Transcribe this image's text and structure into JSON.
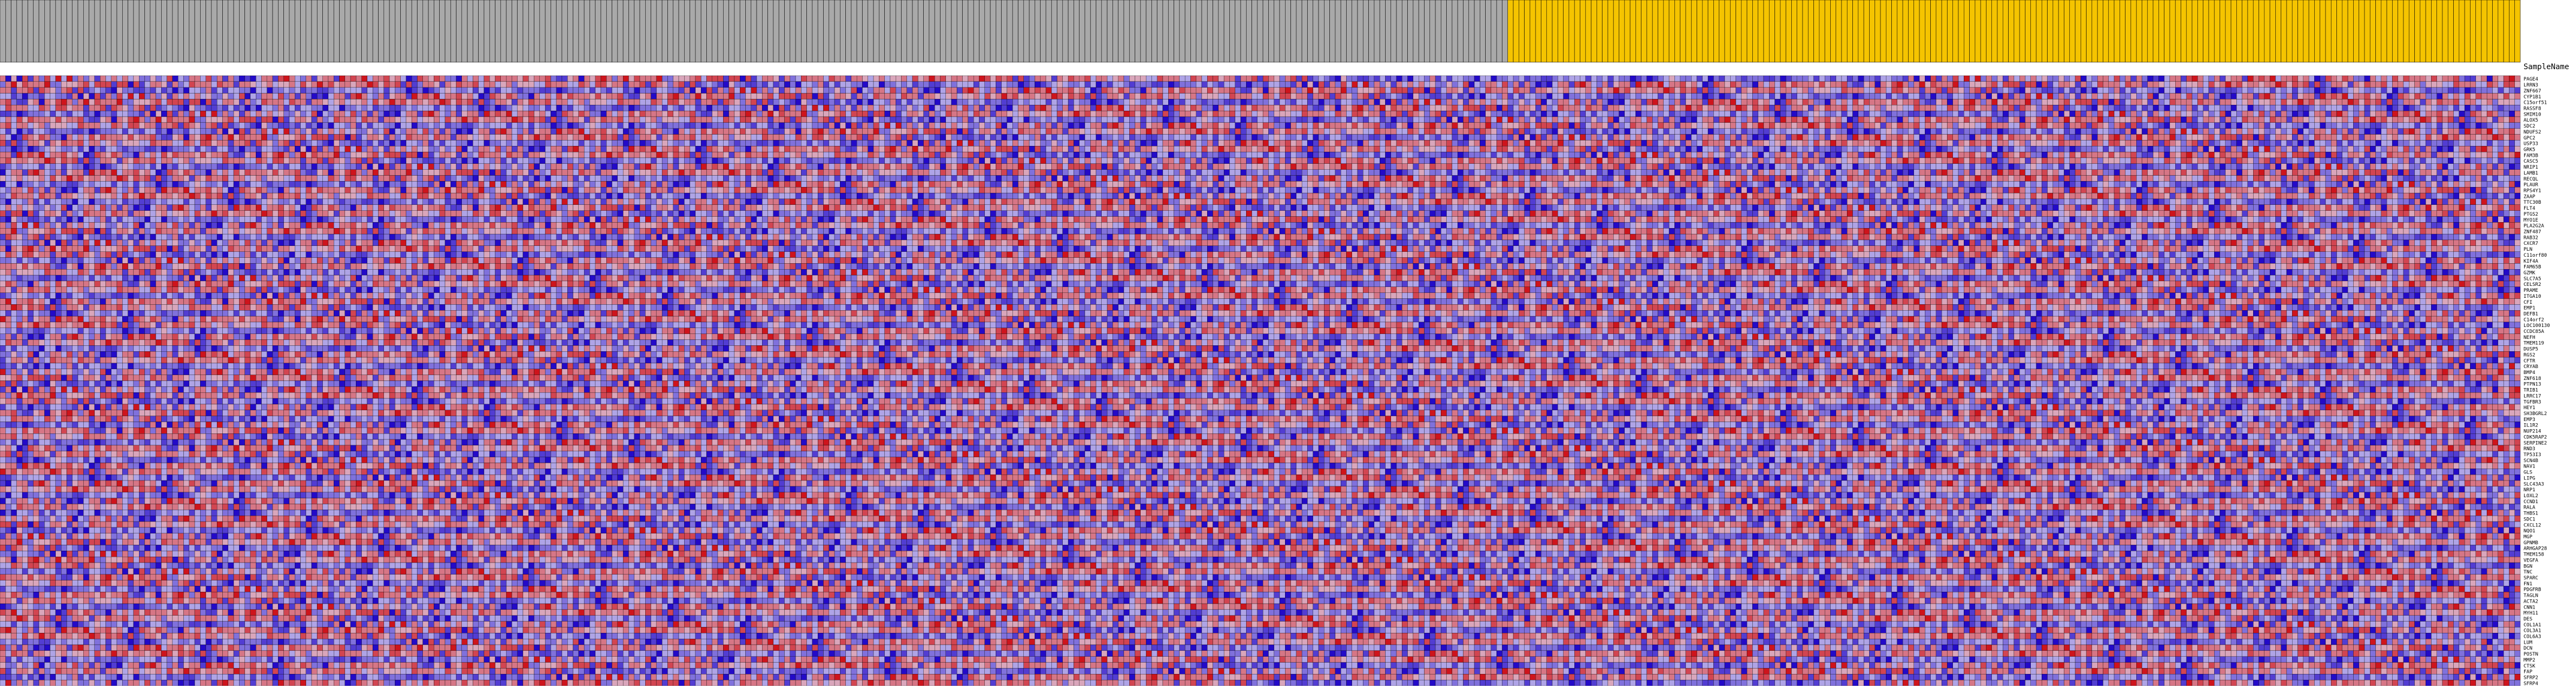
{
  "chart_data": {
    "type": "heatmap",
    "column_header_label": "SampleName",
    "group_colors": {
      "group_a": "#a9a9a9",
      "group_b": "#f5c400"
    },
    "column_groups": [
      "group_a",
      "group_a",
      "group_a",
      "group_a",
      "group_a",
      "group_a",
      "group_a",
      "group_a",
      "group_a",
      "group_a",
      "group_a",
      "group_a",
      "group_a",
      "group_a",
      "group_a",
      "group_a",
      "group_a",
      "group_a",
      "group_a",
      "group_a",
      "group_a",
      "group_a",
      "group_a",
      "group_a",
      "group_a",
      "group_a",
      "group_a",
      "group_a",
      "group_a",
      "group_a",
      "group_a",
      "group_a",
      "group_a",
      "group_a",
      "group_a",
      "group_a",
      "group_a",
      "group_a",
      "group_a",
      "group_a",
      "group_a",
      "group_a",
      "group_a",
      "group_a",
      "group_a",
      "group_a",
      "group_a",
      "group_a",
      "group_a",
      "group_a",
      "group_a",
      "group_a",
      "group_a",
      "group_a",
      "group_a",
      "group_a",
      "group_a",
      "group_a",
      "group_a",
      "group_a",
      "group_a",
      "group_a",
      "group_a",
      "group_a",
      "group_a",
      "group_a",
      "group_a",
      "group_a",
      "group_a",
      "group_a",
      "group_a",
      "group_a",
      "group_a",
      "group_a",
      "group_a",
      "group_a",
      "group_a",
      "group_a",
      "group_a",
      "group_a",
      "group_a",
      "group_a",
      "group_a",
      "group_a",
      "group_a",
      "group_a",
      "group_a",
      "group_a",
      "group_a",
      "group_a",
      "group_a",
      "group_a",
      "group_a",
      "group_a",
      "group_a",
      "group_a",
      "group_a",
      "group_a",
      "group_a",
      "group_a",
      "group_a",
      "group_a",
      "group_a",
      "group_a",
      "group_a",
      "group_a",
      "group_a",
      "group_a",
      "group_a",
      "group_a",
      "group_a",
      "group_a",
      "group_a",
      "group_a",
      "group_a",
      "group_a",
      "group_a",
      "group_a",
      "group_a",
      "group_a",
      "group_a",
      "group_a",
      "group_a",
      "group_a",
      "group_a",
      "group_a",
      "group_a",
      "group_a",
      "group_a",
      "group_a",
      "group_a",
      "group_a",
      "group_a",
      "group_a",
      "group_a",
      "group_a",
      "group_a",
      "group_a",
      "group_a",
      "group_a",
      "group_a",
      "group_a",
      "group_a",
      "group_a",
      "group_a",
      "group_a",
      "group_a",
      "group_a",
      "group_a",
      "group_a",
      "group_a",
      "group_a",
      "group_a",
      "group_a",
      "group_a",
      "group_a",
      "group_a",
      "group_a",
      "group_a",
      "group_a",
      "group_a",
      "group_a",
      "group_a",
      "group_a",
      "group_a",
      "group_a",
      "group_a",
      "group_a",
      "group_a",
      "group_a",
      "group_a",
      "group_a",
      "group_a",
      "group_a",
      "group_a",
      "group_a",
      "group_a",
      "group_a",
      "group_a",
      "group_a",
      "group_a",
      "group_a",
      "group_a",
      "group_a",
      "group_a",
      "group_a",
      "group_a",
      "group_a",
      "group_a",
      "group_a",
      "group_a",
      "group_a",
      "group_a",
      "group_a",
      "group_a",
      "group_a",
      "group_a",
      "group_a",
      "group_a",
      "group_a",
      "group_a",
      "group_a",
      "group_a",
      "group_a",
      "group_a",
      "group_a",
      "group_a",
      "group_a",
      "group_a",
      "group_a",
      "group_a",
      "group_a",
      "group_a",
      "group_a",
      "group_a",
      "group_a",
      "group_a",
      "group_a",
      "group_a",
      "group_a",
      "group_a",
      "group_a",
      "group_a",
      "group_a",
      "group_a",
      "group_a",
      "group_a",
      "group_a",
      "group_a",
      "group_a",
      "group_a",
      "group_a",
      "group_a",
      "group_a",
      "group_a",
      "group_a",
      "group_a",
      "group_a",
      "group_a",
      "group_a",
      "group_a",
      "group_a",
      "group_a",
      "group_a",
      "group_a",
      "group_a",
      "group_a",
      "group_a",
      "group_a",
      "group_a",
      "group_a",
      "group_a",
      "group_a",
      "group_a",
      "group_a",
      "group_a",
      "group_a",
      "group_a",
      "group_a",
      "group_a",
      "group_a",
      "group_a",
      "group_a",
      "group_a",
      "group_a",
      "group_a",
      "group_a",
      "group_a",
      "group_a",
      "group_a",
      "group_a",
      "group_b",
      "group_b",
      "group_b",
      "group_b",
      "group_b",
      "group_b",
      "group_b",
      "group_b",
      "group_b",
      "group_b",
      "group_b",
      "group_b",
      "group_b",
      "group_b",
      "group_b",
      "group_b",
      "group_b",
      "group_b",
      "group_b",
      "group_b",
      "group_b",
      "group_b",
      "group_b",
      "group_b",
      "group_b",
      "group_b",
      "group_b",
      "group_b",
      "group_b",
      "group_b",
      "group_b",
      "group_b",
      "group_b",
      "group_b",
      "group_b",
      "group_b",
      "group_b",
      "group_b",
      "group_b",
      "group_b",
      "group_b",
      "group_b",
      "group_b",
      "group_b",
      "group_b",
      "group_b",
      "group_b",
      "group_b",
      "group_b",
      "group_b",
      "group_b",
      "group_b",
      "group_b",
      "group_b",
      "group_b",
      "group_b",
      "group_b",
      "group_b",
      "group_b",
      "group_b",
      "group_b",
      "group_b",
      "group_b",
      "group_b",
      "group_b",
      "group_b",
      "group_b",
      "group_b",
      "group_b",
      "group_b",
      "group_b",
      "group_b",
      "group_b",
      "group_b",
      "group_b",
      "group_b",
      "group_b",
      "group_b",
      "group_b",
      "group_b",
      "group_b",
      "group_b",
      "group_b",
      "group_b",
      "group_b",
      "group_b",
      "group_b",
      "group_b",
      "group_b",
      "group_b",
      "group_b",
      "group_b",
      "group_b",
      "group_b",
      "group_b",
      "group_b",
      "group_b",
      "group_b",
      "group_b",
      "group_b",
      "group_b",
      "group_b",
      "group_b",
      "group_b",
      "group_b",
      "group_b",
      "group_b",
      "group_b",
      "group_b",
      "group_b",
      "group_b",
      "group_b",
      "group_b",
      "group_b",
      "group_b",
      "group_b",
      "group_b",
      "group_b",
      "group_b",
      "group_b",
      "group_b",
      "group_b",
      "group_b",
      "group_b",
      "group_b",
      "group_b",
      "group_b",
      "group_b",
      "group_b",
      "group_b",
      "group_b",
      "group_b",
      "group_b",
      "group_b",
      "group_b",
      "group_b",
      "group_b",
      "group_b",
      "group_b",
      "group_b",
      "group_b",
      "group_b",
      "group_b",
      "group_b",
      "group_b",
      "group_b",
      "group_b",
      "group_b",
      "group_b",
      "group_b",
      "group_b",
      "group_b",
      "group_b",
      "group_b",
      "group_b",
      "group_b",
      "group_b",
      "group_b",
      "group_b",
      "group_b",
      "group_b",
      "group_b",
      "group_b",
      "group_b",
      "group_b",
      "group_b",
      "group_b",
      "group_b",
      "group_b",
      "group_b",
      "group_b",
      "group_b",
      "group_b",
      "group_b",
      "group_b",
      "group_b",
      "group_b",
      "group_b",
      "group_b",
      "group_b",
      "group_b",
      "group_b"
    ],
    "genes": [
      "PAGE4",
      "LRRN3",
      "ZNF667",
      "CYP1B1",
      "C15orf51",
      "RASSF8",
      "SMIM10",
      "ALOX5",
      "SDC2",
      "NDUFS2",
      "GPC2",
      "USP33",
      "GRK5",
      "FAM3B",
      "CASC5",
      "NRIP1",
      "LAMB1",
      "RECQL",
      "PLAUR",
      "RPS4Y1",
      "ZAAP",
      "TTC30B",
      "FLT4",
      "PTGS2",
      "MYO1E",
      "PLA2G2A",
      "ZNF487",
      "RAB32",
      "CXCR7",
      "PLN",
      "C11orf80",
      "KIF4A",
      "FAM65B",
      "GZMK",
      "SLC7A5",
      "CELSR2",
      "PRAME",
      "ITGA10",
      "CFI",
      "EMP1",
      "DEFB1",
      "C14orf2",
      "LOC100130",
      "CCDC85A",
      "NEFH",
      "TMEM119",
      "DUSP5",
      "RGS2",
      "CFTR",
      "CRYAB",
      "BMP4",
      "ZNF618",
      "PTPN13",
      "TRIB1",
      "LRRC17",
      "TGFBR3",
      "HEY1",
      "SH3BGRL2",
      "EMP3",
      "IL1R2",
      "NUP214",
      "CDK5RAP2",
      "SERPINE2",
      "RND3",
      "TP53I3",
      "SCN4B",
      "NAV1",
      "GLS",
      "LIPG",
      "SLC43A3",
      "NRP1",
      "LOXL2",
      "CCND1",
      "RALA",
      "THBS1",
      "SDC1",
      "CXCL12",
      "NQO1",
      "MGP",
      "GPNMB",
      "ARHGAP28",
      "TMEM158",
      "VEGFA",
      "BGN",
      "TNC",
      "SPARC",
      "FN1",
      "PDGFRB",
      "TAGLN",
      "ACTA2",
      "CNN1",
      "MYH11",
      "DES",
      "COL1A1",
      "COL3A1",
      "COL6A3",
      "LUM",
      "DCN",
      "POSTN",
      "MMP2",
      "CTSK",
      "FAP",
      "SFRP2",
      "SFRP4"
    ],
    "values": "2-4 1-4 3-3 2-2 3-1 4-1 4-2 2-2 1-3 2-1 2-1 2-1 1-2 -2 1-2 -1 3-4 -1 -2 2 2-1 3-2 2-3 2-2 -4 -3 -4 -1 2 2-3 3 4 2-1 -2 2-3 1 2 2-3 4 2 3 2 4-1 2 2 3 1 2 -1-4 -3 3 2 1 3 2-2 -2-4 2-1 2-1 3 1 3 2 2 2 1 3 1 2 2 3 -2-3 -3 1 2-4 2 1 3 4 2 -2 2 4 1 3 2 2 2 4-2 -2 1 1 1 2 3-1 3 3 3 -3 3 3-4 3 -3 -1 2 2 1-3 2-2 -1 3 2 2 2 -1 3 2 2 -3 2 2 1 -1 1 2 -1 1 1 2 -1 3 1 2 4 2 3 1 2 2 1 2 2 4 3 1 3 2 3 -3 3 -3 -2 2 2 1 -3 2 1 3 2 2 3-1 2 2 -1 1 2 -2 1 1 1 -1 -1 3 2 2 2 -1-1 3 2 -1 3 3 1 2 2 -3 2 2 3 -3 3 2 1 -2 2 3 -3 3 -3 -2-1 -2 -3 -4 1 -2 -2 -3-3 -2 -3 -1-3 -2 -4 -2 -4 -1-1 -2 2 -3 -1 -3-1 -1 -2 -2 -4 -1 -1-4 -2 -2-1 -2-1 -3 -2 -2 -3 -3 -2 -1 -2 -1 -1 -1 -3 -1 -2 -1 -3 -1 -2 -2 -4 -3 -2 -4 -3 -2 -1 1 -1 -2 -2 -1 -3 -1 -4 -2 -3 -1 -1 -2 -3 -2 -2 -2 -3 -3 -2 -4 -3 -2 -2 -2 -1 -3 -1 -2 -3 -1 -1 -3 -2 -4 -2 -2 -3 -1 -1 -2 -2 -3"
  }
}
